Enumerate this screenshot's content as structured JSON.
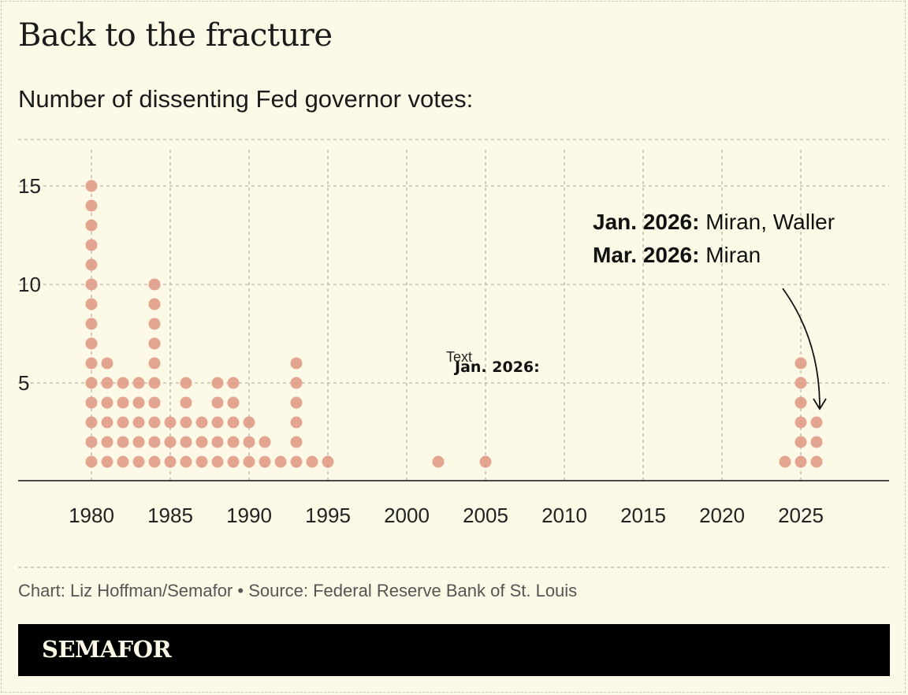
{
  "title": "Back to the fracture",
  "subtitle": "Number of dissenting Fed governor votes:",
  "credit": "Chart: Liz Hoffman/Semafor • Source: Federal Reserve Bank of St. Louis",
  "brand": "SEMAFOR",
  "chart_data": {
    "type": "scatter",
    "style": "dot-stack",
    "x": [
      1980,
      1981,
      1982,
      1983,
      1984,
      1985,
      1986,
      1987,
      1988,
      1989,
      1990,
      1991,
      1992,
      1993,
      1994,
      1995,
      2002,
      2005,
      2024,
      2025,
      2026
    ],
    "values": [
      15,
      6,
      5,
      5,
      10,
      3,
      5,
      3,
      5,
      5,
      3,
      2,
      1,
      6,
      1,
      1,
      1,
      1,
      1,
      6,
      3
    ],
    "xticks": [
      "1980",
      "1985",
      "1990",
      "1995",
      "2000",
      "2005",
      "2010",
      "2015",
      "2020",
      "2025"
    ],
    "yticks": [
      "5",
      "10",
      "15"
    ],
    "xlim": [
      1975,
      2030
    ],
    "ylim": [
      0,
      17
    ],
    "grid": true,
    "dot_color": "#e09a86",
    "annotations": [
      {
        "bold": "Jan. 2026:",
        "text": " Miran, Waller"
      },
      {
        "bold": "Mar. 2026:",
        "text": " Miran"
      }
    ],
    "stray_labels": {
      "text": "Text",
      "bold": "Jan. 2026:"
    }
  }
}
